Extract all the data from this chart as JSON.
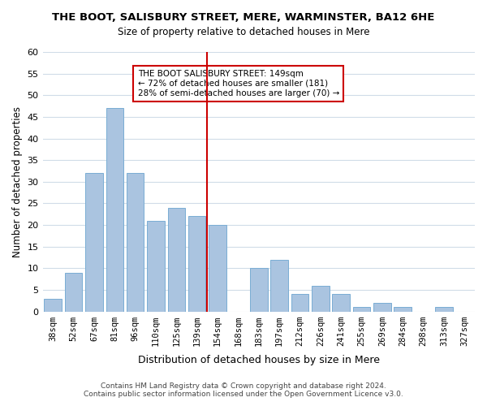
{
  "title": "THE BOOT, SALISBURY STREET, MERE, WARMINSTER, BA12 6HE",
  "subtitle": "Size of property relative to detached houses in Mere",
  "xlabel": "Distribution of detached houses by size in Mere",
  "ylabel": "Number of detached properties",
  "bar_labels": [
    "38sqm",
    "52sqm",
    "67sqm",
    "81sqm",
    "96sqm",
    "110sqm",
    "125sqm",
    "139sqm",
    "154sqm",
    "168sqm",
    "183sqm",
    "197sqm",
    "212sqm",
    "226sqm",
    "241sqm",
    "255sqm",
    "269sqm",
    "284sqm",
    "298sqm",
    "313sqm",
    "327sqm"
  ],
  "bar_values": [
    3,
    9,
    32,
    47,
    32,
    21,
    24,
    22,
    20,
    0,
    10,
    12,
    4,
    6,
    4,
    1,
    2,
    1,
    0,
    1,
    0
  ],
  "bar_color": "#aac4e0",
  "bar_edge_color": "#7aadd4",
  "reference_line_x": 8,
  "reference_line_label": "154sqm",
  "reference_line_color": "#cc0000",
  "annotation_title": "THE BOOT SALISBURY STREET: 149sqm",
  "annotation_line1": "← 72% of detached houses are smaller (181)",
  "annotation_line2": "28% of semi-detached houses are larger (70) →",
  "ylim": [
    0,
    60
  ],
  "yticks": [
    0,
    5,
    10,
    15,
    20,
    25,
    30,
    35,
    40,
    45,
    50,
    55,
    60
  ],
  "footer_line1": "Contains HM Land Registry data © Crown copyright and database right 2024.",
  "footer_line2": "Contains public sector information licensed under the Open Government Licence v3.0.",
  "background_color": "#ffffff",
  "grid_color": "#d0dce8"
}
